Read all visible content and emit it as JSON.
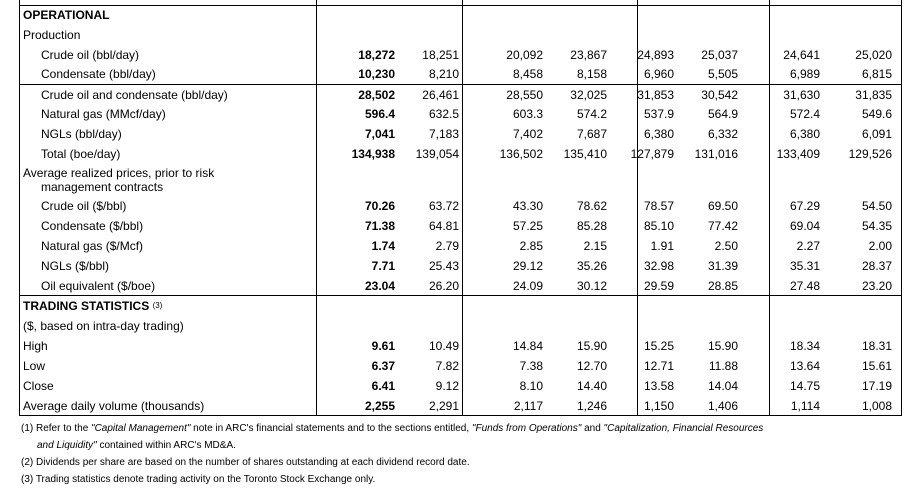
{
  "sections": {
    "operational": "OPERATIONAL",
    "trading": "TRADING STATISTICS",
    "trading_note": "(3)"
  },
  "rows": [
    {
      "label": "Production",
      "indent": 0,
      "values": []
    },
    {
      "label": "Crude oil (bbl/day)",
      "indent": 1,
      "values": [
        "18,272",
        "18,251",
        "20,092",
        "23,867",
        "24,893",
        "25,037",
        "24,641",
        "25,020"
      ]
    },
    {
      "label": "Condensate (bbl/day)",
      "indent": 1,
      "values": [
        "10,230",
        "8,210",
        "8,458",
        "8,158",
        "6,960",
        "5,505",
        "6,989",
        "6,815"
      ]
    },
    {
      "label": "Crude oil and condensate (bbl/day)",
      "indent": 1,
      "values": [
        "28,502",
        "26,461",
        "28,550",
        "32,025",
        "31,853",
        "30,542",
        "31,630",
        "31,835"
      ]
    },
    {
      "label": "Natural gas (MMcf/day)",
      "indent": 1,
      "values": [
        "596.4",
        "632.5",
        "603.3",
        "574.2",
        "537.9",
        "564.9",
        "572.4",
        "549.6"
      ]
    },
    {
      "label": "NGLs (bbl/day)",
      "indent": 1,
      "values": [
        "7,041",
        "7,183",
        "7,402",
        "7,687",
        "6,380",
        "6,332",
        "6,380",
        "6,091"
      ]
    },
    {
      "label": "Total (boe/day)",
      "indent": 1,
      "values": [
        "134,938",
        "139,054",
        "136,502",
        "135,410",
        "127,879",
        "131,016",
        "133,409",
        "129,526"
      ]
    },
    {
      "label": "Average realized prices, prior to risk",
      "label2": "management contracts",
      "indent": 0,
      "values": []
    },
    {
      "label": "Crude oil ($/bbl)",
      "indent": 1,
      "values": [
        "70.26",
        "63.72",
        "43.30",
        "78.62",
        "78.57",
        "69.50",
        "67.29",
        "54.50"
      ]
    },
    {
      "label": "Condensate ($/bbl)",
      "indent": 1,
      "values": [
        "71.38",
        "64.81",
        "57.25",
        "85.28",
        "85.10",
        "77.42",
        "69.04",
        "54.35"
      ]
    },
    {
      "label": "Natural gas ($/Mcf)",
      "indent": 1,
      "values": [
        "1.74",
        "2.79",
        "2.85",
        "2.15",
        "1.91",
        "2.50",
        "2.27",
        "2.00"
      ]
    },
    {
      "label": "NGLs ($/bbl)",
      "indent": 1,
      "values": [
        "7.71",
        "25.43",
        "29.12",
        "35.26",
        "32.98",
        "31.39",
        "35.31",
        "28.37"
      ]
    },
    {
      "label": "Oil equivalent ($/boe)",
      "indent": 1,
      "values": [
        "23.04",
        "26.20",
        "24.09",
        "30.12",
        "29.59",
        "28.85",
        "27.48",
        "23.20"
      ]
    },
    {
      "label": "($, based on intra-day trading)",
      "indent": 0,
      "values": []
    },
    {
      "label": "High",
      "indent": 0,
      "values": [
        "9.61",
        "10.49",
        "14.84",
        "15.90",
        "15.25",
        "15.90",
        "18.34",
        "18.31"
      ]
    },
    {
      "label": "Low",
      "indent": 0,
      "values": [
        "6.37",
        "7.82",
        "7.38",
        "12.70",
        "12.71",
        "11.88",
        "13.64",
        "15.61"
      ]
    },
    {
      "label": "Close",
      "indent": 0,
      "values": [
        "6.41",
        "9.12",
        "8.10",
        "14.40",
        "13.58",
        "14.04",
        "14.75",
        "17.19"
      ]
    },
    {
      "label": "Average daily volume (thousands)",
      "indent": 0,
      "values": [
        "2,255",
        "2,291",
        "2,117",
        "1,246",
        "1,150",
        "1,406",
        "1,114",
        "1,008"
      ]
    }
  ],
  "footnotes": {
    "f1_a": "(1) Refer to the ",
    "f1_b": "\"Capital Management\"",
    "f1_c": " note in ARC's financial statements and to the sections entitled, ",
    "f1_d": "\"Funds from Operations\"",
    "f1_e": " and ",
    "f1_f": "\"Capitalization, Financial Resources",
    "f1_g": "and Liquidity\"",
    "f1_h": " contained within ARC's MD&A.",
    "f2": "(2) Dividends per share are based on the number of shares outstanding at each dividend record date.",
    "f3": "(3) Trading statistics denote trading activity on the Toronto Stock Exchange only."
  }
}
